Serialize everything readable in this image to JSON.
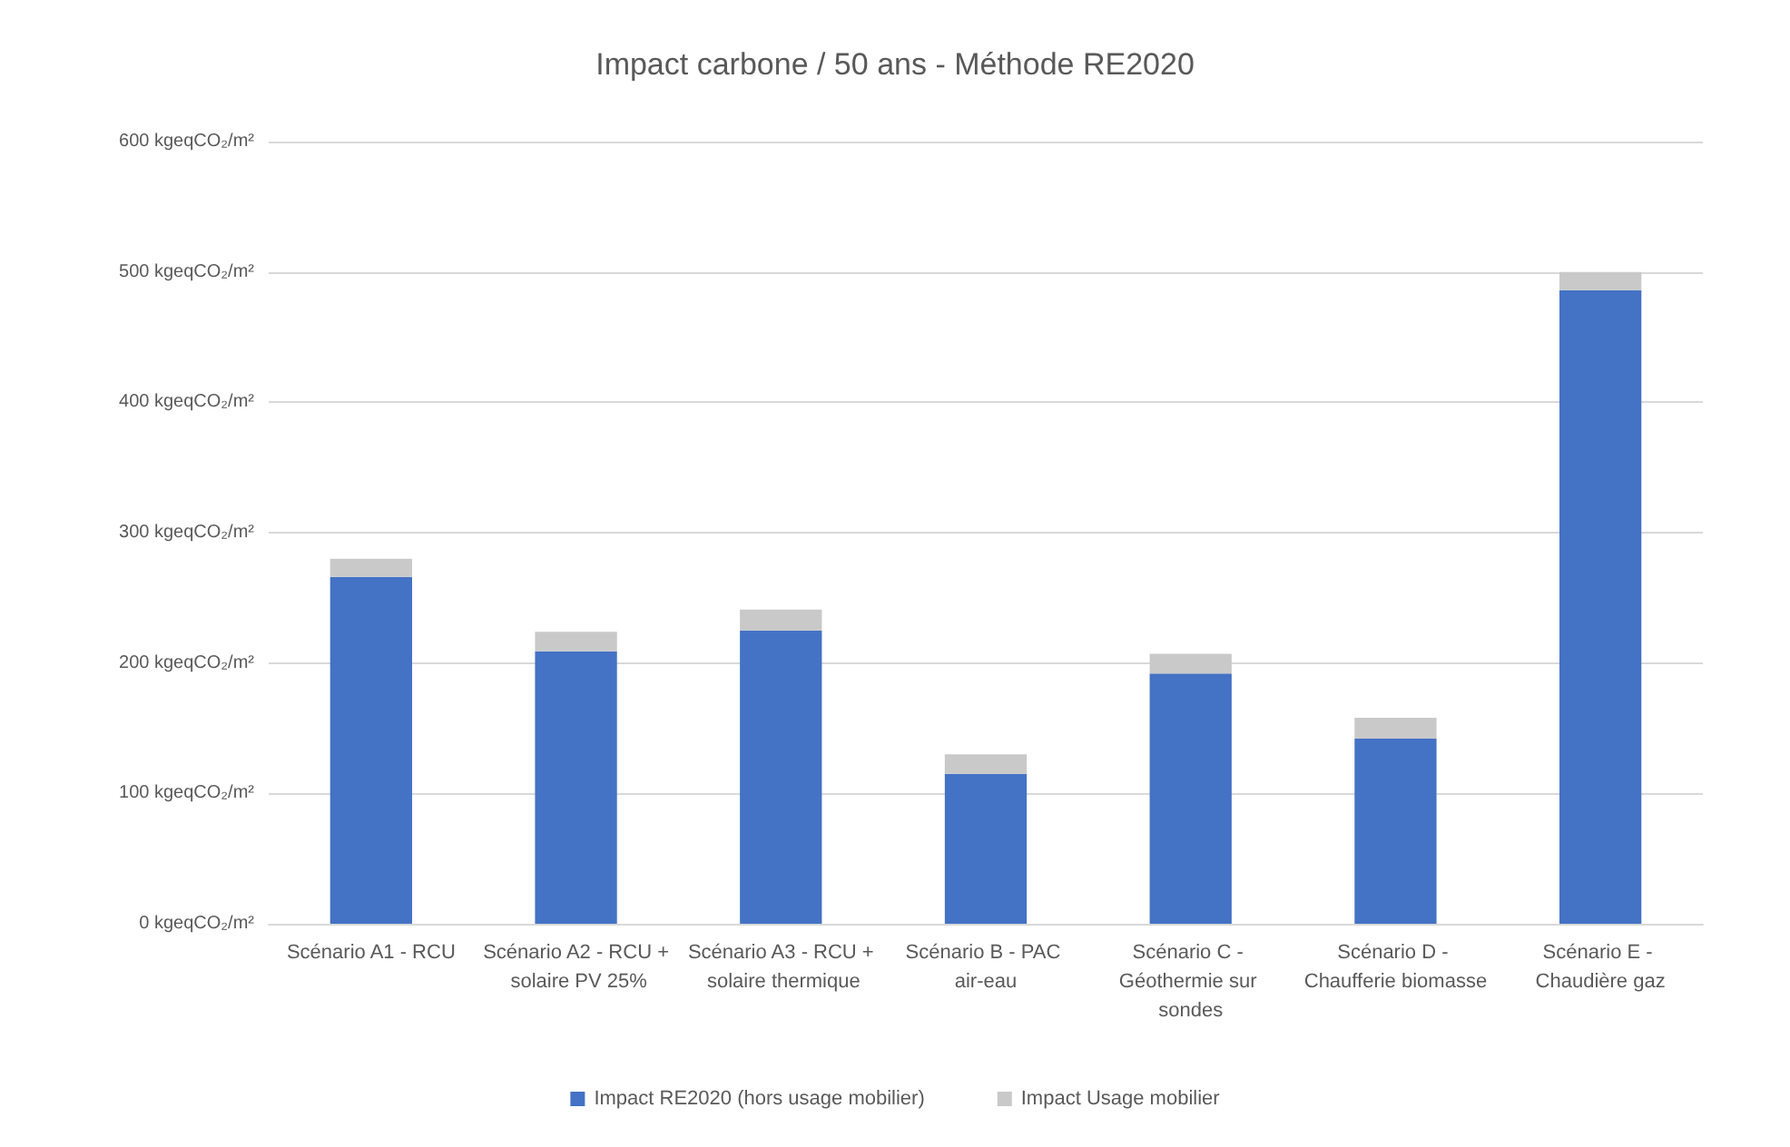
{
  "chart_data": {
    "type": "bar",
    "title": "Impact carbone / 50 ans - Méthode RE2020",
    "categories": [
      "Scénario A1 - RCU",
      "Scénario A2 - RCU + solaire PV 25%",
      "Scénario A3 - RCU + solaire thermique",
      "Scénario B - PAC air-eau",
      "Scénario C - Géothermie sur sondes",
      "Scénario D - Chaufferie biomasse",
      "Scénario E - Chaudière gaz"
    ],
    "series": [
      {
        "name": "Impact RE2020 (hors usage mobilier)",
        "color": "#4472c4",
        "values": [
          266,
          209,
          225,
          115,
          192,
          142,
          486
        ]
      },
      {
        "name": "Impact Usage mobilier",
        "color": "#c9c9c9",
        "values": [
          14,
          15,
          16,
          15,
          15,
          16,
          14
        ]
      }
    ],
    "stacked": true,
    "ylim": [
      0,
      600
    ],
    "yticks": [
      {
        "value": 0,
        "label": "0 kgeqCO₂/m²"
      },
      {
        "value": 100,
        "label": "100 kgeqCO₂/m²"
      },
      {
        "value": 200,
        "label": "200 kgeqCO₂/m²"
      },
      {
        "value": 300,
        "label": "300 kgeqCO₂/m²"
      },
      {
        "value": 400,
        "label": "400 kgeqCO₂/m²"
      },
      {
        "value": 500,
        "label": "500 kgeqCO₂/m²"
      },
      {
        "value": 600,
        "label": "600 kgeqCO₂/m²"
      }
    ],
    "grid": "y",
    "legend": "bottom"
  }
}
